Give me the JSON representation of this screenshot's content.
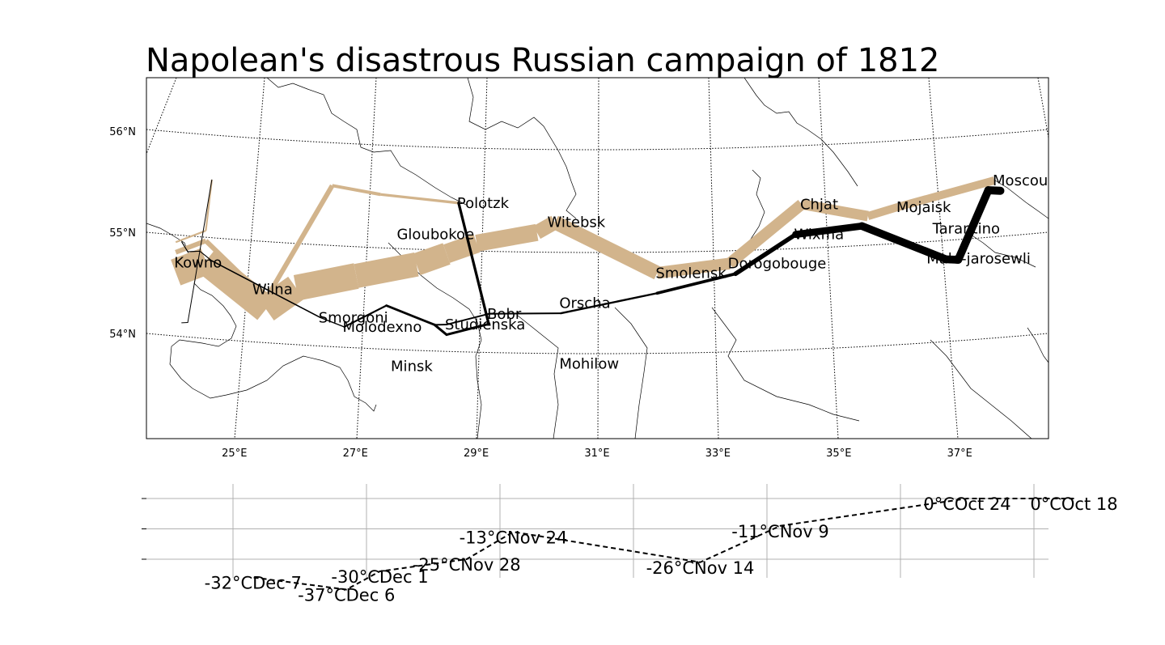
{
  "title": "Napolean's disastrous Russian campaign of 1812",
  "colors": {
    "advance": "#d2b48c",
    "retreat": "#000000",
    "temperature": "#000000"
  },
  "chart_data": [
    {
      "type": "map",
      "title": "Napolean's disastrous Russian campaign of 1812",
      "lon_ticks": [
        "25°E",
        "27°E",
        "29°E",
        "31°E",
        "33°E",
        "35°E",
        "37°E"
      ],
      "lat_ticks": [
        "54°N",
        "55°N",
        "56°N"
      ],
      "lon_range": [
        23.5,
        38.5
      ],
      "lat_range": [
        53.0,
        56.5
      ],
      "cities": [
        {
          "name": "Kowno",
          "lon": 24.0,
          "lat": 55.0
        },
        {
          "name": "Wilna",
          "lon": 25.3,
          "lat": 54.7
        },
        {
          "name": "Smorgoni",
          "lon": 26.4,
          "lat": 54.4
        },
        {
          "name": "Molodexno",
          "lon": 26.8,
          "lat": 54.3
        },
        {
          "name": "Gloubokoe",
          "lon": 27.7,
          "lat": 55.2
        },
        {
          "name": "Minsk",
          "lon": 27.6,
          "lat": 53.9
        },
        {
          "name": "Studienska",
          "lon": 28.5,
          "lat": 54.3
        },
        {
          "name": "Polotzk",
          "lon": 28.7,
          "lat": 55.5
        },
        {
          "name": "Bobr",
          "lon": 29.2,
          "lat": 54.4
        },
        {
          "name": "Witebsk",
          "lon": 30.2,
          "lat": 55.3
        },
        {
          "name": "Orscha",
          "lon": 30.4,
          "lat": 54.5
        },
        {
          "name": "Mohilow",
          "lon": 30.4,
          "lat": 53.9
        },
        {
          "name": "Smolensk",
          "lon": 32.0,
          "lat": 54.8
        },
        {
          "name": "Dorogobouge",
          "lon": 33.2,
          "lat": 54.9
        },
        {
          "name": "Wixma",
          "lon": 34.3,
          "lat": 55.2
        },
        {
          "name": "Chjat",
          "lon": 34.4,
          "lat": 55.5
        },
        {
          "name": "Mojaisk",
          "lon": 36.0,
          "lat": 55.5
        },
        {
          "name": "Moscou",
          "lon": 37.6,
          "lat": 55.8
        },
        {
          "name": "Tarantino",
          "lon": 36.6,
          "lat": 55.3
        },
        {
          "name": "Malo-jarosewli",
          "lon": 36.5,
          "lat": 55.0
        }
      ],
      "paths": [
        {
          "direction": "A",
          "group": 1,
          "points": [
            {
              "lon": 24.0,
              "lat": 54.9,
              "survivors": 340000
            },
            {
              "lon": 24.5,
              "lat": 55.0,
              "survivors": 340000
            },
            {
              "lon": 25.5,
              "lat": 54.5,
              "survivors": 340000
            },
            {
              "lon": 26.0,
              "lat": 54.7,
              "survivors": 320000
            },
            {
              "lon": 27.0,
              "lat": 54.8,
              "survivors": 300000
            },
            {
              "lon": 28.0,
              "lat": 54.9,
              "survivors": 280000
            },
            {
              "lon": 28.5,
              "lat": 55.0,
              "survivors": 240000
            },
            {
              "lon": 29.0,
              "lat": 55.1,
              "survivors": 210000
            },
            {
              "lon": 30.0,
              "lat": 55.2,
              "survivors": 180000
            },
            {
              "lon": 30.3,
              "lat": 55.3,
              "survivors": 175000
            },
            {
              "lon": 32.0,
              "lat": 54.8,
              "survivors": 145000
            },
            {
              "lon": 33.2,
              "lat": 54.9,
              "survivors": 140000
            },
            {
              "lon": 34.4,
              "lat": 55.5,
              "survivors": 127100
            },
            {
              "lon": 35.5,
              "lat": 55.4,
              "survivors": 100000
            },
            {
              "lon": 36.0,
              "lat": 55.5,
              "survivors": 100000
            },
            {
              "lon": 37.6,
              "lat": 55.8,
              "survivors": 100000
            }
          ]
        },
        {
          "direction": "R",
          "group": 1,
          "points": [
            {
              "lon": 37.7,
              "lat": 55.7,
              "survivors": 100000
            },
            {
              "lon": 37.5,
              "lat": 55.7,
              "survivors": 98000
            },
            {
              "lon": 37.0,
              "lat": 55.0,
              "survivors": 97000
            },
            {
              "lon": 36.8,
              "lat": 55.0,
              "survivors": 96000
            },
            {
              "lon": 35.4,
              "lat": 55.3,
              "survivors": 87000
            },
            {
              "lon": 34.3,
              "lat": 55.2,
              "survivors": 55000
            },
            {
              "lon": 33.3,
              "lat": 54.8,
              "survivors": 37000
            },
            {
              "lon": 32.0,
              "lat": 54.6,
              "survivors": 24000
            },
            {
              "lon": 30.4,
              "lat": 54.4,
              "survivors": 20000
            },
            {
              "lon": 29.2,
              "lat": 54.4,
              "survivors": 20000
            },
            {
              "lon": 28.5,
              "lat": 54.3,
              "survivors": 20000
            },
            {
              "lon": 28.3,
              "lat": 54.3,
              "survivors": 20000
            },
            {
              "lon": 27.5,
              "lat": 54.5,
              "survivors": 20000
            },
            {
              "lon": 26.8,
              "lat": 54.3,
              "survivors": 12000
            },
            {
              "lon": 26.4,
              "lat": 54.4,
              "survivors": 14000
            },
            {
              "lon": 24.6,
              "lat": 55.0,
              "survivors": 8000
            },
            {
              "lon": 24.4,
              "lat": 55.1,
              "survivors": 4000
            },
            {
              "lon": 24.2,
              "lat": 55.1,
              "survivors": 4000
            },
            {
              "lon": 24.1,
              "lat": 55.2,
              "survivors": 4000
            }
          ]
        },
        {
          "direction": "A",
          "group": 2,
          "points": [
            {
              "lon": 24.0,
              "lat": 55.1,
              "survivors": 60000
            },
            {
              "lon": 24.5,
              "lat": 55.2,
              "survivors": 60000
            },
            {
              "lon": 25.5,
              "lat": 54.6,
              "survivors": 60000
            },
            {
              "lon": 26.6,
              "lat": 55.7,
              "survivors": 40000
            },
            {
              "lon": 27.4,
              "lat": 55.6,
              "survivors": 33000
            },
            {
              "lon": 28.7,
              "lat": 55.5,
              "survivors": 33000
            }
          ]
        },
        {
          "direction": "R",
          "group": 2,
          "points": [
            {
              "lon": 28.7,
              "lat": 55.5,
              "survivors": 33000
            },
            {
              "lon": 29.2,
              "lat": 54.3,
              "survivors": 30000
            },
            {
              "lon": 28.5,
              "lat": 54.2,
              "survivors": 30000
            },
            {
              "lon": 28.3,
              "lat": 54.3,
              "survivors": 28000
            },
            {
              "lon": 27.5,
              "lat": 54.5,
              "survivors": 20000
            },
            {
              "lon": 26.8,
              "lat": 54.3,
              "survivors": 12000
            },
            {
              "lon": 26.4,
              "lat": 54.4,
              "survivors": 14000
            },
            {
              "lon": 24.6,
              "lat": 55.0,
              "survivors": 8000
            },
            {
              "lon": 24.4,
              "lat": 55.1,
              "survivors": 4000
            },
            {
              "lon": 24.2,
              "lat": 55.1,
              "survivors": 4000
            },
            {
              "lon": 24.1,
              "lat": 55.2,
              "survivors": 4000
            }
          ]
        },
        {
          "direction": "A",
          "group": 3,
          "points": [
            {
              "lon": 24.0,
              "lat": 55.2,
              "survivors": 22000
            },
            {
              "lon": 24.5,
              "lat": 55.3,
              "survivors": 22000
            },
            {
              "lon": 24.6,
              "lat": 55.8,
              "survivors": 6000
            }
          ]
        },
        {
          "direction": "R",
          "group": 3,
          "points": [
            {
              "lon": 24.6,
              "lat": 55.8,
              "survivors": 6000
            },
            {
              "lon": 24.2,
              "lat": 54.4,
              "survivors": 6000
            },
            {
              "lon": 24.1,
              "lat": 54.4,
              "survivors": 6000
            }
          ]
        }
      ]
    },
    {
      "type": "line",
      "xlim": [
        23.6,
        38.4
      ],
      "ylim": [
        -40,
        5
      ],
      "grid": true,
      "points": [
        {
          "lon": 37.6,
          "temp": 0,
          "label": "0°COct 18"
        },
        {
          "lon": 36.0,
          "temp": 0,
          "label": "0°COct 24"
        },
        {
          "lon": 33.2,
          "temp": -9,
          "label": "-11°CNov 9"
        },
        {
          "lon": 32.0,
          "temp": -21,
          "label": "-26°CNov 14"
        },
        {
          "lon": 29.2,
          "temp": -11,
          "label": "-13°CNov 24"
        },
        {
          "lon": 28.5,
          "temp": -20,
          "label": "-25°CNov 28"
        },
        {
          "lon": 27.2,
          "temp": -24,
          "label": "-30°CDec 1"
        },
        {
          "lon": 26.7,
          "temp": -30,
          "label": "-37°CDec 6"
        },
        {
          "lon": 25.3,
          "temp": -26,
          "label": "-32°CDec 7"
        }
      ]
    }
  ]
}
